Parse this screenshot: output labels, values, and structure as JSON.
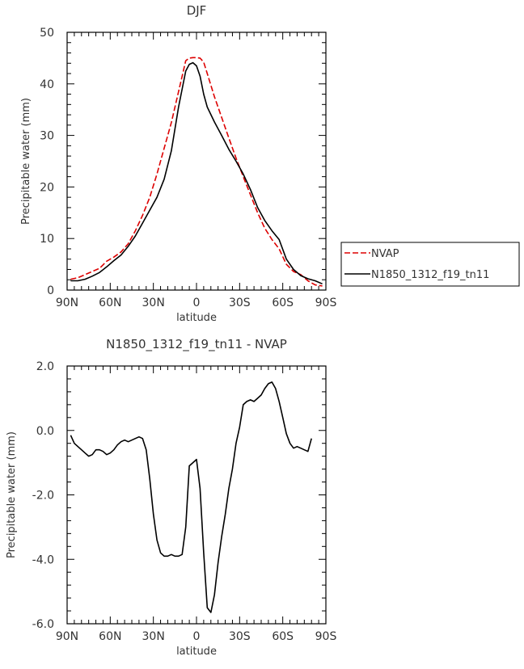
{
  "chart_data": [
    {
      "type": "line",
      "title": "DJF",
      "xlabel": "latitude",
      "ylabel": "Precipitable water (mm)",
      "xlim": [
        90,
        -90
      ],
      "ylim": [
        0,
        50
      ],
      "xticks": [
        {
          "v": 90,
          "label": "90N"
        },
        {
          "v": 60,
          "label": "60N"
        },
        {
          "v": 30,
          "label": "30N"
        },
        {
          "v": 0,
          "label": "0"
        },
        {
          "v": -30,
          "label": "30S"
        },
        {
          "v": -60,
          "label": "60S"
        },
        {
          "v": -90,
          "label": "90S"
        }
      ],
      "yticks": [
        {
          "v": 0,
          "label": "0"
        },
        {
          "v": 10,
          "label": "10"
        },
        {
          "v": 20,
          "label": "20"
        },
        {
          "v": 30,
          "label": "30"
        },
        {
          "v": 40,
          "label": "40"
        },
        {
          "v": 50,
          "label": "50"
        }
      ],
      "legend_position": "right",
      "series": [
        {
          "name": "NVAP",
          "color": "#dd0000",
          "dash": true,
          "x": [
            87.5,
            82.5,
            77.5,
            72.5,
            67.5,
            62.5,
            57.5,
            52.5,
            47.5,
            42.5,
            37.5,
            32.5,
            27.5,
            22.5,
            17.5,
            12.5,
            7.5,
            5,
            2.5,
            0,
            -2.5,
            -5,
            -7.5,
            -12.5,
            -17.5,
            -22.5,
            -27.5,
            -32.5,
            -37.5,
            -42.5,
            -47.5,
            -52.5,
            -57.5,
            -62.5,
            -67.5,
            -72.5,
            -77.5,
            -82.5,
            -87.5
          ],
          "y": [
            2.1,
            2.4,
            3.0,
            3.6,
            4.2,
            5.6,
            6.4,
            7.4,
            9.0,
            11.5,
            14.5,
            18.0,
            22.5,
            27.5,
            32.5,
            38.5,
            44.5,
            45.0,
            45.1,
            45.1,
            45.0,
            44.2,
            42.0,
            37.5,
            33.5,
            29.5,
            25.6,
            22.0,
            18.5,
            15.0,
            12.0,
            9.8,
            8.0,
            5.0,
            3.6,
            3.0,
            1.8,
            1.0,
            0.8
          ]
        },
        {
          "name": "N1850_1312_f19_tn11",
          "color": "#000000",
          "dash": false,
          "x": [
            87.5,
            82.5,
            77.5,
            72.5,
            67.5,
            62.5,
            57.5,
            52.5,
            47.5,
            42.5,
            37.5,
            32.5,
            27.5,
            22.5,
            17.5,
            12.5,
            7.5,
            5,
            2.5,
            0,
            -2.5,
            -5,
            -7.5,
            -12.5,
            -17.5,
            -22.5,
            -27.5,
            -32.5,
            -37.5,
            -42.5,
            -47.5,
            -52.5,
            -57.5,
            -62.5,
            -67.5,
            -72.5,
            -77.5,
            -82.5,
            -87.5
          ],
          "y": [
            1.8,
            1.8,
            2.1,
            2.7,
            3.4,
            4.5,
            5.7,
            6.8,
            8.5,
            10.5,
            13.0,
            15.5,
            18.0,
            21.5,
            27.0,
            35.5,
            42.5,
            43.8,
            44.1,
            43.5,
            41.5,
            38.0,
            35.5,
            32.6,
            30.0,
            27.3,
            25.0,
            22.5,
            19.5,
            16.0,
            13.5,
            11.5,
            9.8,
            6.0,
            4.0,
            2.8,
            2.2,
            1.8,
            1.2
          ]
        }
      ]
    },
    {
      "type": "line",
      "title": "N1850_1312_f19_tn11 - NVAP",
      "xlabel": "latitude",
      "ylabel": "Precipitable water (mm)",
      "xlim": [
        90,
        -90
      ],
      "ylim": [
        -6,
        2
      ],
      "xticks": [
        {
          "v": 90,
          "label": "90N"
        },
        {
          "v": 60,
          "label": "60N"
        },
        {
          "v": 30,
          "label": "30N"
        },
        {
          "v": 0,
          "label": "0"
        },
        {
          "v": -30,
          "label": "30S"
        },
        {
          "v": -60,
          "label": "60S"
        },
        {
          "v": -90,
          "label": "90S"
        }
      ],
      "yticks": [
        {
          "v": 2,
          "label": "2.0"
        },
        {
          "v": 0,
          "label": "0.0"
        },
        {
          "v": -2,
          "label": "-2.0"
        },
        {
          "v": -4,
          "label": "-4.0"
        },
        {
          "v": -6,
          "label": "-6.0"
        }
      ],
      "series": [
        {
          "color": "#000000",
          "dash": false,
          "x": [
            87.5,
            85,
            82.5,
            80,
            77.5,
            75,
            72.5,
            70,
            67.5,
            65,
            62.5,
            60,
            57.5,
            55,
            52.5,
            50,
            47.5,
            45,
            42.5,
            40,
            37.5,
            35,
            32.5,
            30,
            27.5,
            25,
            22.5,
            20,
            17.5,
            15,
            12.5,
            10,
            7.5,
            5,
            2.5,
            0,
            -2.5,
            -5,
            -7.5,
            -10,
            -12.5,
            -15,
            -17.5,
            -20,
            -22.5,
            -25,
            -27.5,
            -30,
            -32.5,
            -35,
            -37.5,
            -40,
            -42.5,
            -45,
            -47.5,
            -50,
            -52.5,
            -55,
            -57.5,
            -60,
            -62.5,
            -65,
            -67.5,
            -70,
            -72.5,
            -75,
            -77.5,
            -80,
            -82.5,
            -85,
            -87.5
          ],
          "y": [
            -0.15,
            -0.4,
            -0.5,
            -0.6,
            -0.7,
            -0.8,
            -0.75,
            -0.6,
            -0.6,
            -0.65,
            -0.75,
            -0.7,
            -0.6,
            -0.45,
            -0.35,
            -0.3,
            -0.35,
            -0.3,
            -0.25,
            -0.2,
            -0.25,
            -0.6,
            -1.5,
            -2.6,
            -3.4,
            -3.8,
            -3.9,
            -3.9,
            -3.85,
            -3.9,
            -3.9,
            -3.85,
            -3.0,
            -1.1,
            -1.0,
            -0.9,
            -1.8,
            -3.8,
            -5.5,
            -5.65,
            -5.1,
            -4.1,
            -3.3,
            -2.6,
            -1.8,
            -1.2,
            -0.4,
            0.1,
            0.8,
            0.9,
            0.95,
            0.9,
            1.0,
            1.1,
            1.3,
            1.45,
            1.5,
            1.3,
            0.9,
            0.4,
            -0.1,
            -0.4,
            -0.55,
            -0.5,
            -0.55,
            -0.6,
            -0.65,
            -0.25,
            null,
            null,
            null
          ]
        }
      ]
    }
  ]
}
